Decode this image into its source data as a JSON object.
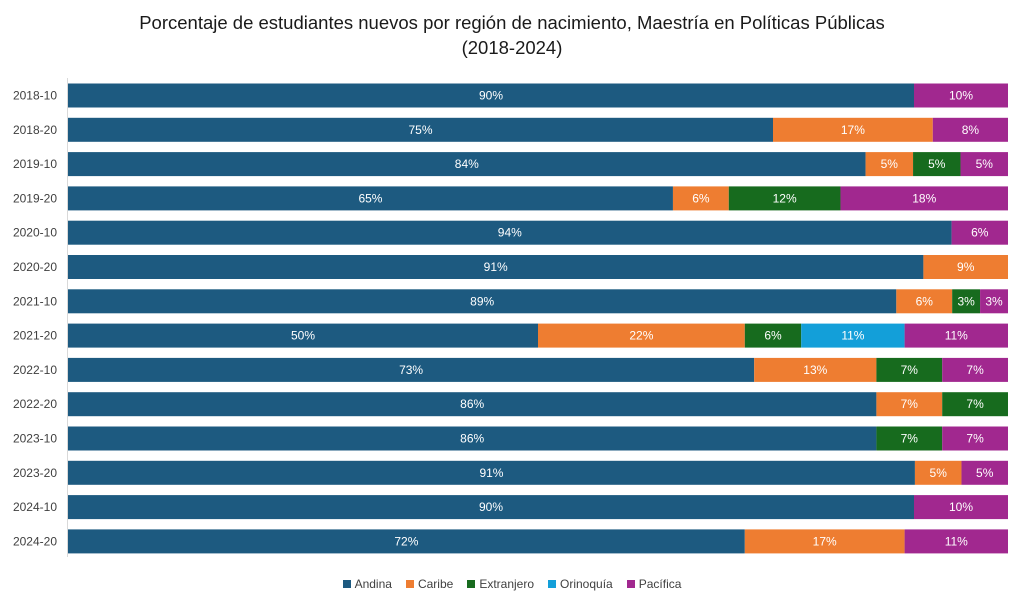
{
  "chart_data": {
    "type": "bar",
    "orientation": "horizontal",
    "stacked": "100%",
    "title_lines": [
      "Porcentaje de estudiantes nuevos por región de nacimiento, Maestría en Políticas Públicas",
      "(2018-2024)"
    ],
    "categories": [
      "2018-10",
      "2018-20",
      "2019-10",
      "2019-20",
      "2020-10",
      "2020-20",
      "2021-10",
      "2021-20",
      "2022-10",
      "2022-20",
      "2023-10",
      "2023-20",
      "2024-10",
      "2024-20"
    ],
    "series": [
      {
        "name": "Andina",
        "color": "#1d5a80",
        "values": [
          90,
          75,
          84,
          65,
          94,
          91,
          89,
          50,
          73,
          86,
          86,
          91,
          90,
          72
        ]
      },
      {
        "name": "Caribe",
        "color": "#ee7d31",
        "values": [
          0,
          17,
          5,
          6,
          0,
          9,
          6,
          22,
          13,
          7,
          0,
          5,
          0,
          17
        ]
      },
      {
        "name": "Extranjero",
        "color": "#176b1e",
        "values": [
          0,
          0,
          5,
          12,
          0,
          0,
          3,
          6,
          7,
          7,
          7,
          0,
          0,
          0
        ]
      },
      {
        "name": "Orinoquía",
        "color": "#139fd9",
        "values": [
          0,
          0,
          0,
          0,
          0,
          0,
          0,
          11,
          0,
          0,
          0,
          0,
          0,
          0
        ]
      },
      {
        "name": "Pacífica",
        "color": "#a1288f",
        "values": [
          10,
          8,
          5,
          18,
          6,
          0,
          3,
          11,
          7,
          0,
          7,
          5,
          10,
          11
        ]
      }
    ],
    "legend_position": "bottom",
    "grid": false
  }
}
